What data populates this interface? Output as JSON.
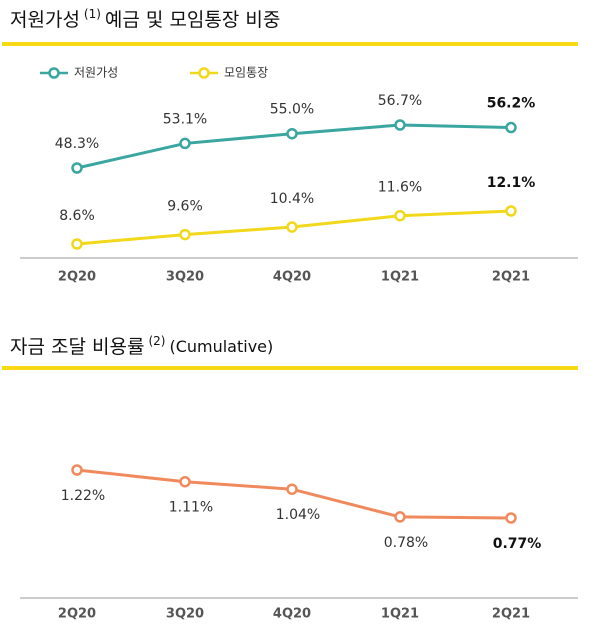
{
  "chart_data": [
    {
      "type": "line",
      "title": "저원가성",
      "title_note": "(1)",
      "title_rest": "예금 및 모임통장 비중",
      "categories": [
        "2Q20",
        "3Q20",
        "4Q20",
        "1Q21",
        "2Q21"
      ],
      "legend": "top-left",
      "series": [
        {
          "name": "저원가성",
          "color": "#3aa6a0",
          "values": [
            48.3,
            53.1,
            55.0,
            56.7,
            56.2
          ],
          "value_labels": [
            "48.3%",
            "53.1%",
            "55.0%",
            "56.7%",
            "56.2%"
          ]
        },
        {
          "name": "모임통장",
          "color": "#f2d81a",
          "values": [
            8.6,
            9.6,
            10.4,
            11.6,
            12.1
          ],
          "value_labels": [
            "8.6%",
            "9.6%",
            "10.4%",
            "11.6%",
            "12.1%"
          ]
        }
      ]
    },
    {
      "type": "line",
      "title": "자금 조달 비용률",
      "title_note": "(2)",
      "title_rest": "(Cumulative)",
      "categories": [
        "2Q20",
        "3Q20",
        "4Q20",
        "1Q21",
        "2Q21"
      ],
      "series": [
        {
          "color": "#f08a5d",
          "values": [
            1.22,
            1.11,
            1.04,
            0.78,
            0.77
          ],
          "value_labels": [
            "1.22%",
            "1.11%",
            "1.04%",
            "0.78%",
            "0.77%"
          ]
        }
      ]
    }
  ]
}
